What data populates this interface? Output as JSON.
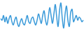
{
  "chart_data": {
    "type": "line",
    "categories": [
      null,
      null,
      null,
      null,
      null,
      null,
      null,
      null,
      null,
      null,
      null,
      null,
      null,
      null,
      null,
      null,
      null,
      null,
      null,
      null,
      null,
      null,
      null,
      null,
      null,
      null,
      null,
      null,
      null,
      null,
      null,
      null,
      null,
      null,
      null,
      null,
      null,
      null,
      null,
      null,
      null,
      null,
      null,
      null,
      null,
      null,
      null,
      null,
      null,
      null,
      null,
      null,
      null,
      null,
      null,
      null,
      null,
      null,
      null,
      null
    ],
    "values": [
      45,
      40,
      55,
      35,
      50,
      30,
      45,
      55,
      35,
      25,
      40,
      50,
      30,
      20,
      35,
      45,
      30,
      25,
      40,
      55,
      35,
      30,
      45,
      50,
      35,
      25,
      40,
      60,
      45,
      30,
      55,
      70,
      40,
      25,
      50,
      80,
      55,
      30,
      60,
      90,
      50,
      20,
      70,
      95,
      45,
      15,
      60,
      85,
      40,
      20,
      65,
      75,
      35,
      45,
      55,
      40,
      50,
      45,
      35,
      40
    ],
    "color": "#3a9ad9",
    "ylim": [
      10,
      100
    ],
    "grid": false,
    "tick_labels": false
  }
}
